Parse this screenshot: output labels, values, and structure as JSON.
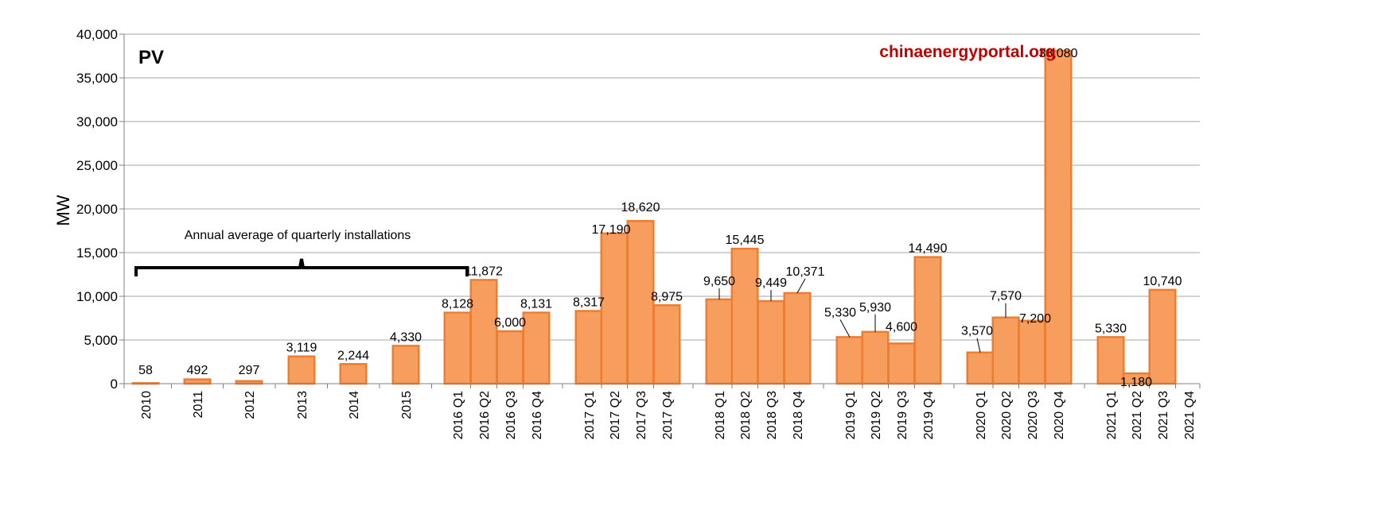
{
  "chart_data": {
    "type": "bar",
    "title": "PV",
    "ylabel": "MW",
    "xlabel": "",
    "ylim": [
      0,
      40000
    ],
    "yticks": [
      "0",
      "5,000",
      "10,000",
      "15,000",
      "20,000",
      "25,000",
      "30,000",
      "35,000",
      "40,000"
    ],
    "grid": true,
    "categories": [
      "2010",
      "2011",
      "2012",
      "2013",
      "2014",
      "2015",
      "2016 Q1",
      "2016 Q2",
      "2016 Q3",
      "2016 Q4",
      "2017 Q1",
      "2017 Q2",
      "2017 Q3",
      "2017 Q4",
      "2018 Q1",
      "2018 Q2",
      "2018 Q3",
      "2018 Q4",
      "2019 Q1",
      "2019 Q2",
      "2019 Q3",
      "2019 Q4",
      "2020 Q1",
      "2020 Q2",
      "2020 Q3",
      "2020 Q4",
      "2021 Q1",
      "2021 Q2",
      "2021 Q3",
      "2021 Q4"
    ],
    "values": [
      58,
      492,
      297,
      3119,
      2244,
      4330,
      8128,
      11872,
      6000,
      8131,
      8317,
      17190,
      18620,
      8975,
      9650,
      15445,
      9449,
      10371,
      5330,
      5930,
      4600,
      14490,
      3570,
      7570,
      7200,
      38080,
      5330,
      1180,
      10740,
      null
    ],
    "value_labels": [
      "58",
      "492",
      "297",
      "3,119",
      "2,244",
      "4,330",
      "8,128",
      "11,872",
      "6,000",
      "8,131",
      "8,317",
      "17,190",
      "18,620",
      "8,975",
      "9,650",
      "15,445",
      "9,449",
      "10,371",
      "5,330",
      "5,930",
      "4,600",
      "14,490",
      "3,570",
      "7,570",
      "7,200",
      "38,080",
      "5,330",
      "1,180",
      "10,740",
      ""
    ],
    "annotation": "Annual average of quarterly installations",
    "watermark": "chinaenergyportal.org",
    "colors": {
      "bar_fill": "#F79E5E",
      "bar_stroke": "#ED7D31",
      "grid": "#A6A6A6",
      "watermark": "#C00000"
    }
  }
}
